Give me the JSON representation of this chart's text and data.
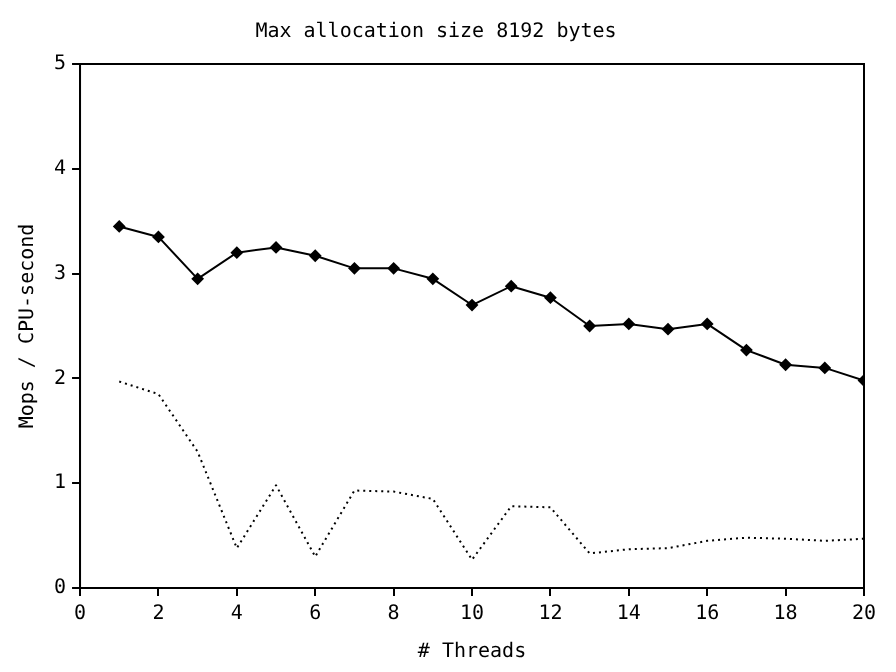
{
  "chart_data": {
    "type": "line",
    "title": "Max allocation size 8192 bytes",
    "xlabel": "# Threads",
    "ylabel": "Mops / CPU-second",
    "x": [
      1,
      2,
      3,
      4,
      5,
      6,
      7,
      8,
      9,
      10,
      11,
      12,
      13,
      14,
      15,
      16,
      17,
      18,
      19,
      20
    ],
    "xlim": [
      0,
      20
    ],
    "xticks": [
      0,
      2,
      4,
      6,
      8,
      10,
      12,
      14,
      16,
      18,
      20
    ],
    "ylim": [
      0,
      5
    ],
    "yticks": [
      0,
      1,
      2,
      3,
      4,
      5
    ],
    "grid": false,
    "legend": false,
    "series": [
      {
        "color": "#000000",
        "marker": "diamond",
        "line_style": "solid",
        "values": [
          3.45,
          3.35,
          2.95,
          3.2,
          3.25,
          3.17,
          3.05,
          3.05,
          2.95,
          2.7,
          2.88,
          2.77,
          2.5,
          2.52,
          2.47,
          2.52,
          2.27,
          2.13,
          2.1,
          1.98
        ]
      },
      {
        "color": "#000000",
        "marker": "none",
        "line_style": "dotted",
        "values": [
          1.97,
          1.85,
          1.3,
          0.38,
          0.98,
          0.3,
          0.93,
          0.92,
          0.85,
          0.27,
          0.78,
          0.77,
          0.33,
          0.37,
          0.38,
          0.45,
          0.48,
          0.47,
          0.45,
          0.47
        ]
      }
    ]
  }
}
